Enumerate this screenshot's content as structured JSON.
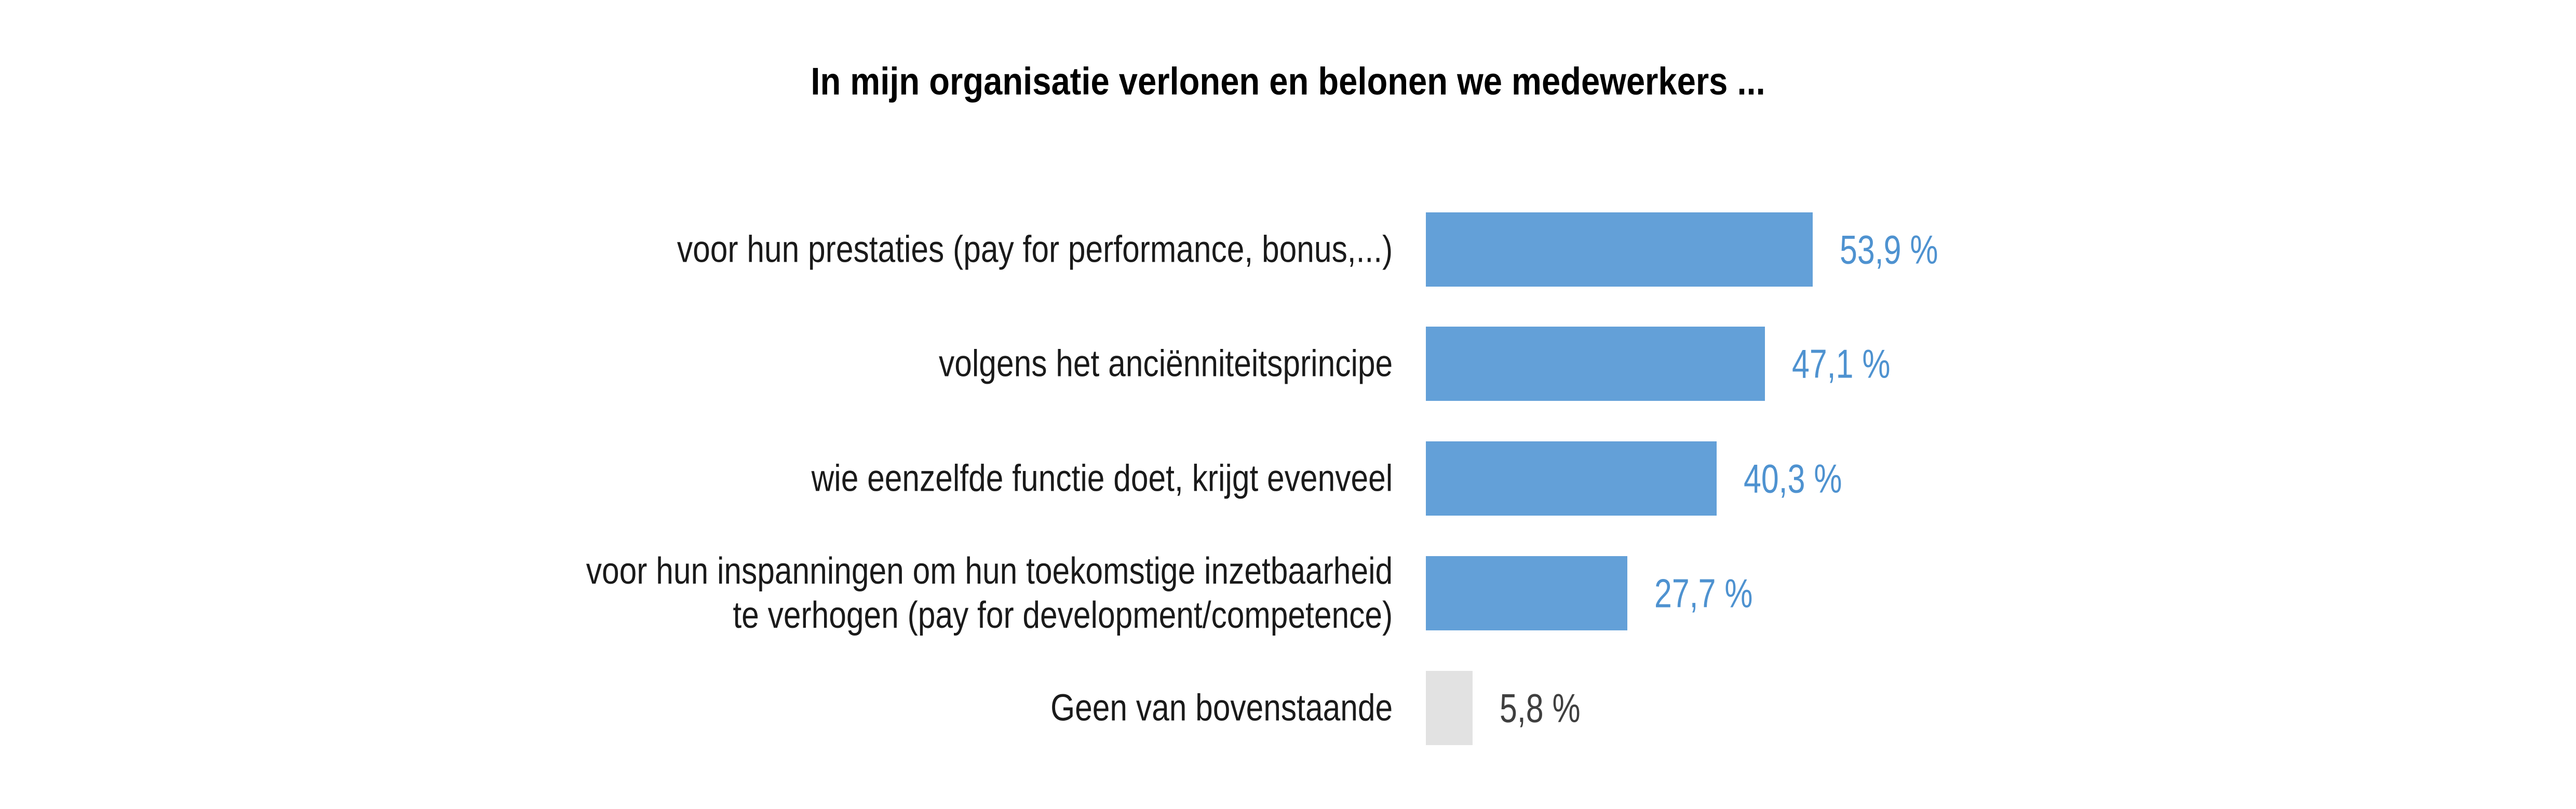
{
  "page": {
    "background": "#FFFFFF"
  },
  "chart_data": {
    "type": "bar",
    "orientation": "horizontal",
    "title": "In mijn organisatie verlonen en belonen we medewerkers ...",
    "categories": [
      "voor hun prestaties (pay for performance, bonus,...)",
      "volgens het anciënniteitsprincipe",
      "wie eenzelfde functie doet, krijgt evenveel",
      "voor hun inspanningen om hun toekomstige inzetbaarheid\nte verhogen (pay for development/competence)",
      "Geen van bovenstaande"
    ],
    "values": [
      53.9,
      47.1,
      40.3,
      27.7,
      5.8
    ],
    "value_labels": [
      "53,9 %",
      "47,1 %",
      "40,3 %",
      "27,7 %",
      "5,8 %"
    ],
    "unit": "%",
    "bar_colors": [
      "#63A0D8",
      "#63A0D8",
      "#63A0D8",
      "#63A0D8",
      "#E2E2E2"
    ],
    "value_label_colors": [
      "#4E92D0",
      "#4E92D0",
      "#4E92D0",
      "#4E92D0",
      "#3F3F3F"
    ],
    "xlim": [
      0,
      60
    ],
    "grid": false,
    "legend": false,
    "axes_visible": false,
    "colors": {
      "bar_blue": "#63A0D8",
      "bar_gray": "#E2E2E2",
      "value_blue": "#4E92D0",
      "value_gray": "#3F3F3F",
      "label_text": "#1A1A1A",
      "title_text": "#000000"
    }
  }
}
